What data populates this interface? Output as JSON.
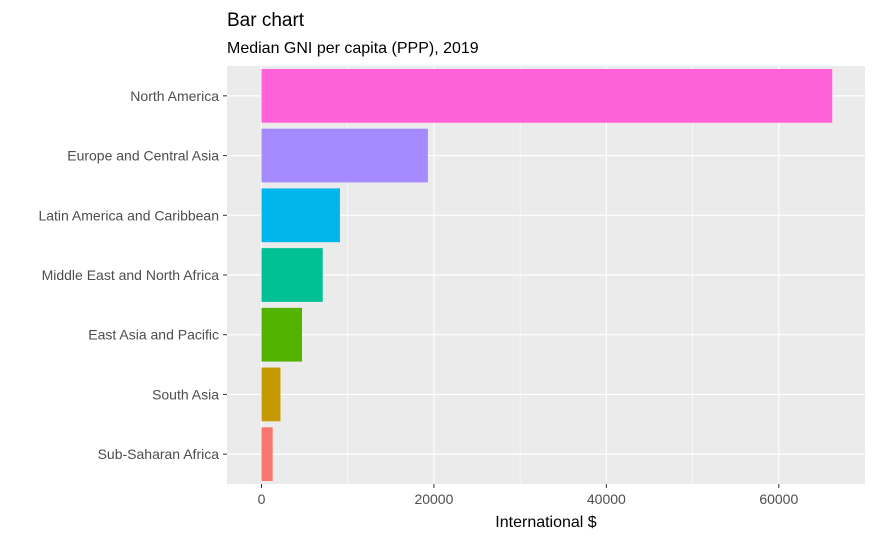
{
  "chart_data": {
    "type": "bar",
    "orientation": "horizontal",
    "title": "Bar chart",
    "subtitle": "Median GNI per capita (PPP), 2019",
    "xlabel": "International $",
    "ylabel": "",
    "xlim": [
      -4000,
      70000
    ],
    "xticks": [
      0,
      20000,
      40000,
      60000
    ],
    "xtick_labels": [
      "0",
      "20000",
      "40000",
      "60000"
    ],
    "categories": [
      "North America",
      "Europe and Central Asia",
      "Latin America and Caribbean",
      "Middle East and North Africa",
      "East Asia and Pacific",
      "South Asia",
      "Sub-Saharan Africa"
    ],
    "values": [
      66200,
      19300,
      9100,
      7100,
      4700,
      2200,
      1300
    ],
    "colors": [
      "#FF61D8",
      "#A58AFF",
      "#00B6EB",
      "#00C094",
      "#53B400",
      "#C49A00",
      "#F8766D"
    ],
    "panel_background": "#EBEBEB",
    "grid": true,
    "legend": "none"
  }
}
